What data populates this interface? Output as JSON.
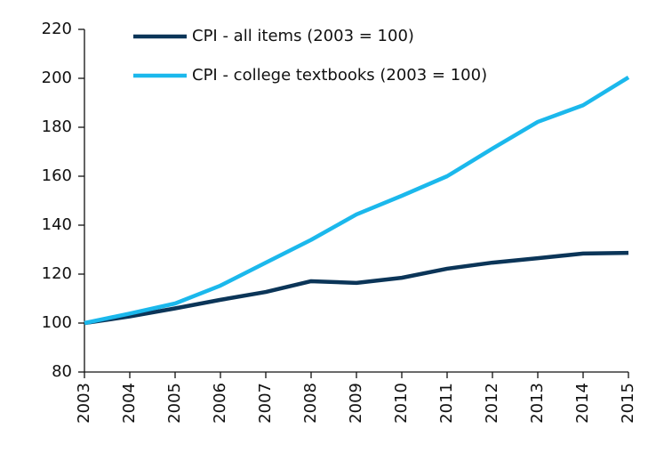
{
  "chart_data": {
    "type": "line",
    "categories": [
      "2003",
      "2004",
      "2005",
      "2006",
      "2007",
      "2008",
      "2009",
      "2010",
      "2011",
      "2012",
      "2013",
      "2014",
      "2015"
    ],
    "series": [
      {
        "name": "CPI - all items (2003 = 100)",
        "color": "#0b3558",
        "values": [
          100,
          102.7,
          106,
          109.5,
          112.7,
          117.1,
          116.4,
          118.5,
          122.2,
          124.7,
          126.5,
          128.4,
          128.7
        ]
      },
      {
        "name": "CPI - college textbooks (2003 = 100)",
        "color": "#1bb8ec",
        "values": [
          100,
          103.9,
          108,
          115.3,
          124.7,
          134,
          144.4,
          152,
          160,
          171.3,
          182.2,
          189,
          200.4
        ]
      }
    ],
    "ylim": [
      80,
      220
    ],
    "yticks": [
      80,
      100,
      120,
      140,
      160,
      180,
      200,
      220
    ],
    "grid": false,
    "legend": "top"
  }
}
